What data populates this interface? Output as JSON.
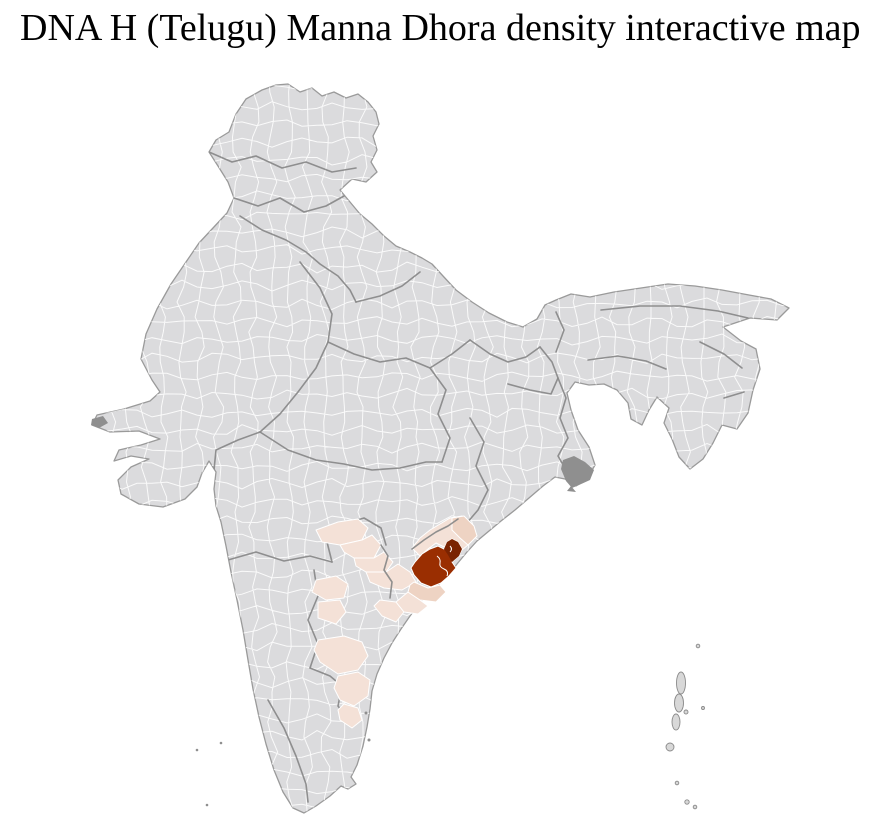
{
  "title": "DNA H (Telugu) Manna Dhora density interactive map",
  "map": {
    "label": "India district-level density choropleth",
    "colors": {
      "background": "#ffffff",
      "land": "#dbdbdd",
      "district_border": "#ffffff",
      "state_border": "#8a8a8a",
      "outline": "#9a9a9a",
      "density_low": "#f4e1d7",
      "density_medium": "#eed3c3",
      "density_high": "#9a2e01",
      "density_highest": "#7a2301",
      "water_feature": "#8f8f8f",
      "island": "#d8d8d8"
    }
  }
}
